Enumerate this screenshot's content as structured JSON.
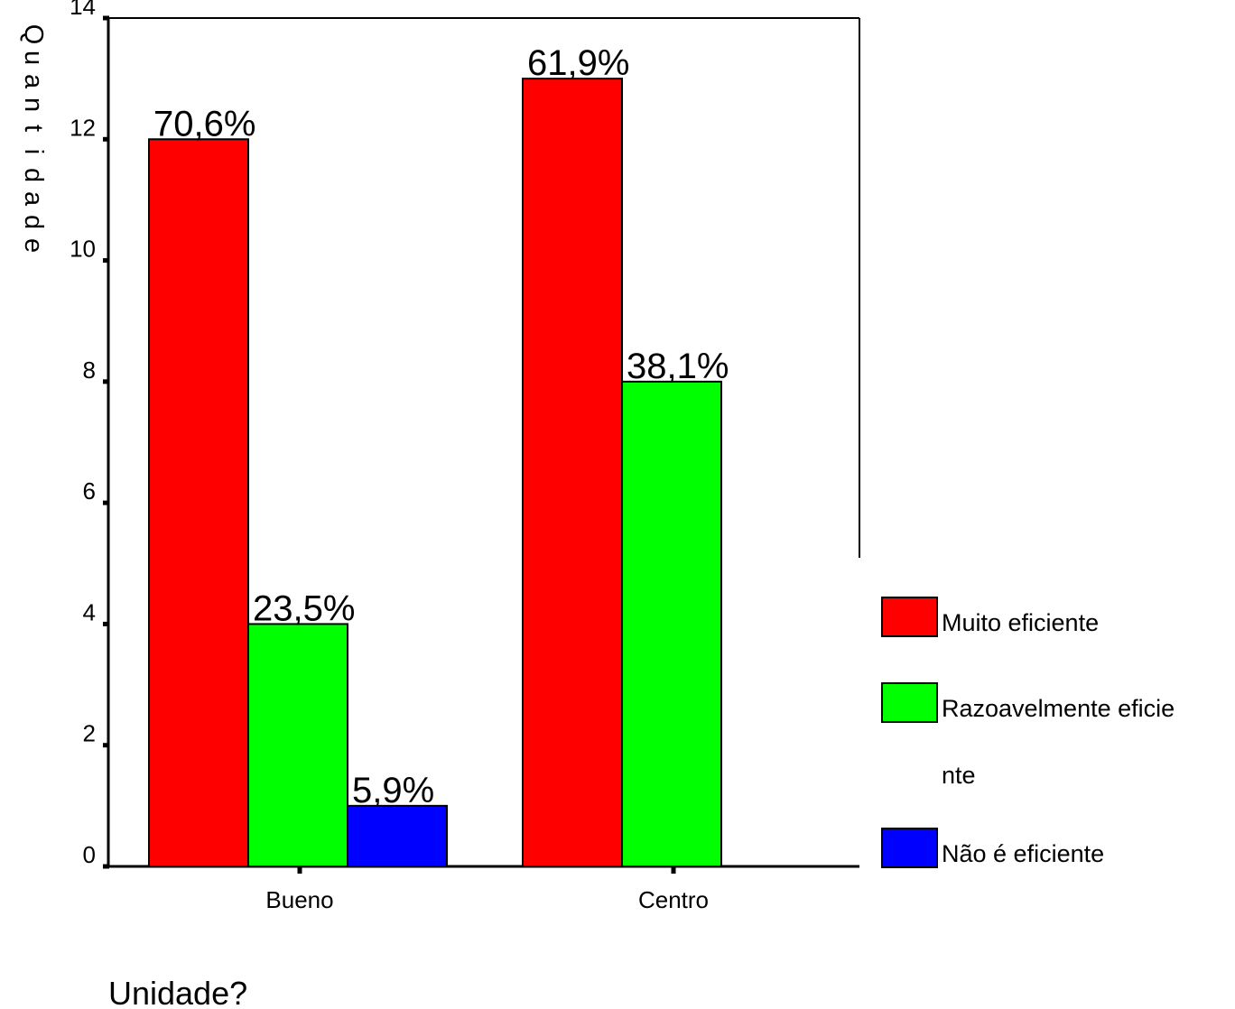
{
  "chart_data": {
    "type": "bar",
    "xlabel": "Unidade?",
    "ylabel": "Quantidade",
    "ylim": [
      0,
      14
    ],
    "yticks": [
      0,
      2,
      4,
      6,
      8,
      10,
      12,
      14
    ],
    "categories": [
      "Bueno",
      "Centro"
    ],
    "series": [
      {
        "name": "Muito eficiente",
        "color": "#ff0000",
        "values": [
          12,
          13
        ],
        "labels": [
          "70,6%",
          "61,9%"
        ]
      },
      {
        "name": "Razoavelmente eficiente",
        "legend_lines": [
          "Razoavelmente eficie",
          "nte"
        ],
        "color": "#00ff00",
        "values": [
          4,
          8
        ],
        "labels": [
          "23,5%",
          "38,1%"
        ]
      },
      {
        "name": "Não é eficiente",
        "color": "#0000ff",
        "values": [
          1,
          null
        ],
        "labels": [
          "5,9%",
          null
        ]
      }
    ],
    "grid": false,
    "legend": "right"
  }
}
